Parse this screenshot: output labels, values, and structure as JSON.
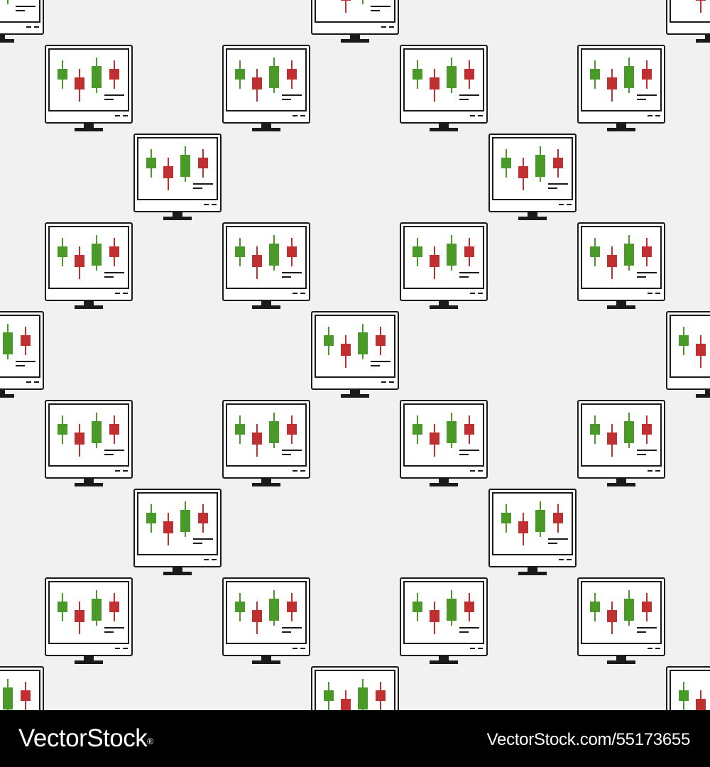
{
  "pattern": {
    "icon_name": "stock-chart-monitor-icon",
    "background_color": "#f1f1f1",
    "outline_color": "#1a1a1a",
    "bullish_color": "#4a9a2a",
    "bearish_color": "#c03030"
  },
  "footer": {
    "logo_text": "VectorStock",
    "registered_mark": "®",
    "url_text": "VectorStock.com/55173655",
    "background_color": "#000000",
    "text_color": "#ffffff"
  }
}
